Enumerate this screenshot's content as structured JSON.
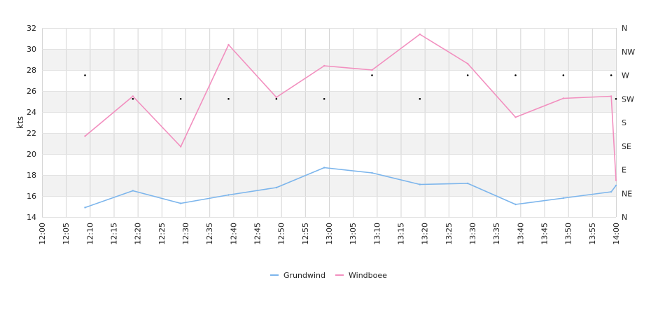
{
  "chart_data": {
    "type": "line",
    "ylabel": "kts",
    "ylim": [
      14,
      32
    ],
    "y_ticks": [
      "14",
      "16",
      "18",
      "20",
      "22",
      "24",
      "26",
      "28",
      "30",
      "32"
    ],
    "x_ticks": [
      "12:00",
      "12:05",
      "12:10",
      "12:15",
      "12:20",
      "12:25",
      "12:30",
      "12:35",
      "12:40",
      "12:45",
      "12:50",
      "12:55",
      "13:00",
      "13:05",
      "13:10",
      "13:15",
      "13:20",
      "13:25",
      "13:30",
      "13:35",
      "13:40",
      "13:45",
      "13:50",
      "13:55",
      "14:00"
    ],
    "xlim": [
      "12:00",
      "14:00"
    ],
    "right_axis_ticks": [
      "N",
      "NE",
      "E",
      "SE",
      "S",
      "SW",
      "W",
      "NW",
      "N"
    ],
    "grid": true,
    "legend_position": "bottom-center",
    "colors": {
      "Grundwind": "#7cb5ec",
      "Windboee": "#f28fbf",
      "direction_marker": "#000000",
      "band": "#f2f2f2"
    },
    "x": [
      "12:09",
      "12:19",
      "12:29",
      "12:39",
      "12:49",
      "12:59",
      "13:09",
      "13:19",
      "13:29",
      "13:39",
      "13:49",
      "13:59",
      "14:00"
    ],
    "series": [
      {
        "name": "Grundwind",
        "values": [
          14.9,
          16.5,
          15.3,
          16.1,
          16.8,
          18.7,
          18.2,
          17.1,
          17.2,
          15.2,
          15.8,
          16.4,
          17.0
        ]
      },
      {
        "name": "Windboee",
        "values": [
          21.7,
          25.5,
          20.7,
          30.4,
          25.4,
          28.4,
          28.0,
          31.4,
          28.6,
          23.5,
          25.3,
          25.5,
          17.5
        ]
      }
    ],
    "direction_markers": {
      "x": [
        "12:09",
        "12:19",
        "12:29",
        "12:39",
        "12:49",
        "12:59",
        "13:09",
        "13:19",
        "13:29",
        "13:39",
        "13:49",
        "13:59",
        "14:00"
      ],
      "values": [
        "W",
        "SW",
        "SW",
        "SW",
        "SW",
        "SW",
        "W",
        "SW",
        "W",
        "W",
        "W",
        "W",
        "SW"
      ]
    }
  }
}
